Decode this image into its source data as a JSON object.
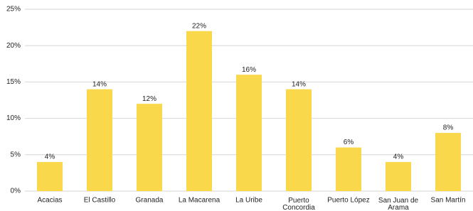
{
  "chart_data": {
    "type": "bar",
    "categories": [
      "Acacias",
      "El Castillo",
      "Granada",
      "La Macarena",
      "La Uribe",
      "Puerto Concordia",
      "Puerto López",
      "San Juan de Arama",
      "San Martín"
    ],
    "values": [
      4,
      14,
      12,
      22,
      16,
      14,
      6,
      4,
      8
    ],
    "value_labels": [
      "4%",
      "14%",
      "12%",
      "22%",
      "16%",
      "14%",
      "6%",
      "4%",
      "8%"
    ],
    "color": "#f9d84b",
    "ylim": [
      0,
      25
    ],
    "yticks": [
      {
        "value": 0,
        "label": "0%"
      },
      {
        "value": 5,
        "label": "5%"
      },
      {
        "value": 10,
        "label": "10%"
      },
      {
        "value": 15,
        "label": "15%"
      },
      {
        "value": 20,
        "label": "20%"
      },
      {
        "value": 25,
        "label": "25%"
      }
    ],
    "grid": true
  }
}
